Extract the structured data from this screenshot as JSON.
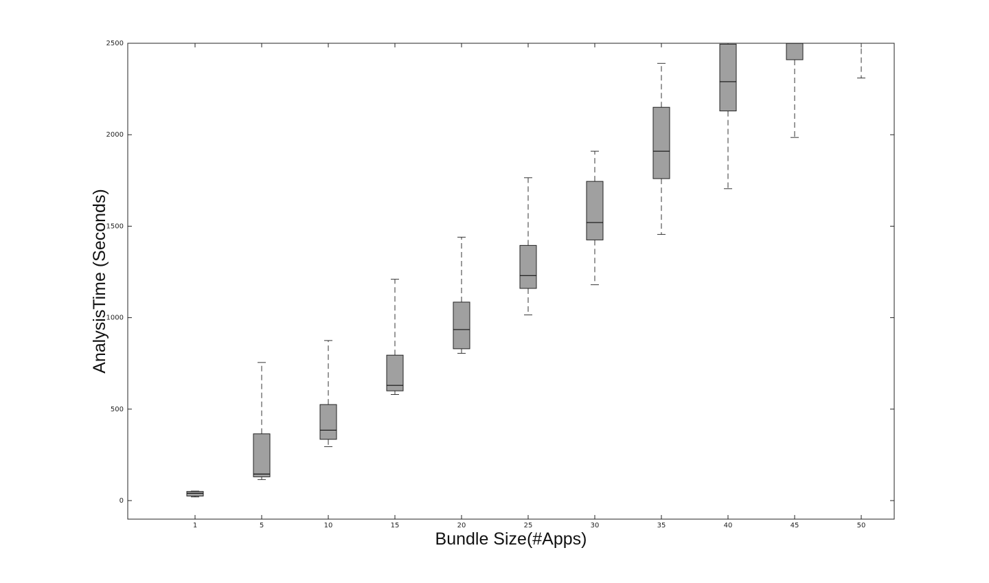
{
  "chart_data": {
    "type": "box",
    "title": "",
    "xlabel": "Bundle Size(#Apps)",
    "ylabel": "AnalysisTime (Seconds)",
    "ylim": [
      -105,
      2500
    ],
    "yticks": [
      0,
      500,
      1000,
      1500,
      2000,
      2500
    ],
    "grid": false,
    "legend": "none",
    "box_color": "#a0a0a0",
    "categories": [
      "1",
      "5",
      "10",
      "15",
      "20",
      "25",
      "30",
      "35",
      "40",
      "45",
      "50"
    ],
    "boxes": [
      {
        "category": "1",
        "whisker_low": 20,
        "q1": 25,
        "median": 40,
        "q3": 50,
        "whisker_high": 52
      },
      {
        "category": "5",
        "whisker_low": 115,
        "q1": 130,
        "median": 145,
        "q3": 365,
        "whisker_high": 755
      },
      {
        "category": "10",
        "whisker_low": 295,
        "q1": 335,
        "median": 385,
        "q3": 525,
        "whisker_high": 875
      },
      {
        "category": "15",
        "whisker_low": 580,
        "q1": 600,
        "median": 630,
        "q3": 795,
        "whisker_high": 1210
      },
      {
        "category": "20",
        "whisker_low": 805,
        "q1": 830,
        "median": 935,
        "q3": 1085,
        "whisker_high": 1440
      },
      {
        "category": "25",
        "whisker_low": 1015,
        "q1": 1160,
        "median": 1230,
        "q3": 1395,
        "whisker_high": 1765
      },
      {
        "category": "30",
        "whisker_low": 1180,
        "q1": 1425,
        "median": 1520,
        "q3": 1745,
        "whisker_high": 1910
      },
      {
        "category": "35",
        "whisker_low": 1455,
        "q1": 1760,
        "median": 1910,
        "q3": 2150,
        "whisker_high": 2390
      },
      {
        "category": "40",
        "whisker_low": 1705,
        "q1": 2130,
        "median": 2290,
        "q3": 2495,
        "whisker_high": 2510
      },
      {
        "category": "45",
        "whisker_low": 1985,
        "q1": 2410,
        "median": 2500,
        "q3": 2510,
        "whisker_high": 2520
      },
      {
        "category": "50",
        "whisker_low": 2310,
        "q1": 2520,
        "median": 2530,
        "q3": 2540,
        "whisker_high": 2550
      }
    ]
  }
}
